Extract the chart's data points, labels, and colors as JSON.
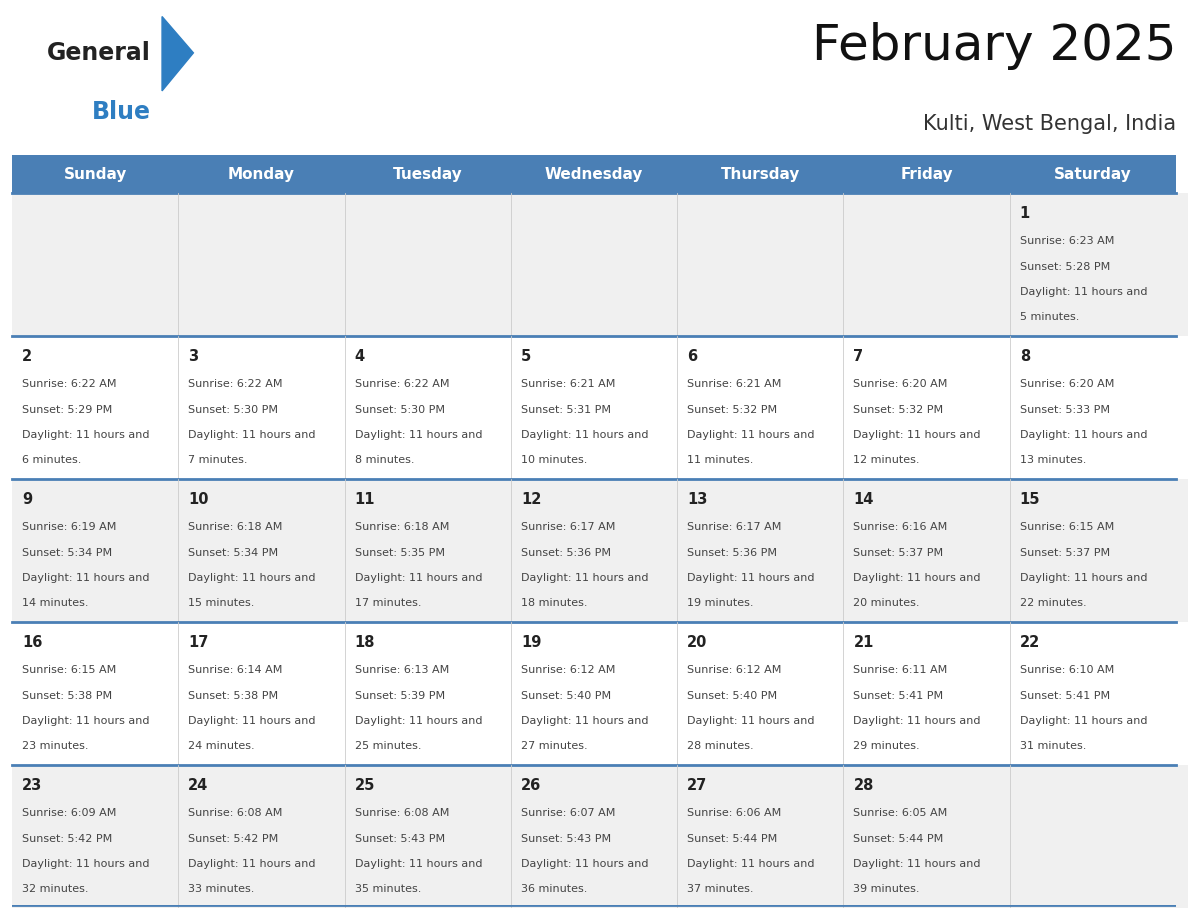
{
  "title": "February 2025",
  "subtitle": "Kulti, West Bengal, India",
  "header_bg": "#4a7fb5",
  "header_text_color": "#ffffff",
  "day_names": [
    "Sunday",
    "Monday",
    "Tuesday",
    "Wednesday",
    "Thursday",
    "Friday",
    "Saturday"
  ],
  "row_bg_odd": "#f0f0f0",
  "row_bg_even": "#ffffff",
  "cell_border_color": "#4a7fb5",
  "cell_sep_color": "#cccccc",
  "text_color": "#444444",
  "date_color": "#222222",
  "logo_general_color": "#222222",
  "logo_blue_color": "#2e7ec2",
  "calendar": [
    [
      null,
      null,
      null,
      null,
      null,
      null,
      {
        "day": 1,
        "sunrise": "6:23 AM",
        "sunset": "5:28 PM",
        "daylight": "11 hours and 5 minutes"
      }
    ],
    [
      {
        "day": 2,
        "sunrise": "6:22 AM",
        "sunset": "5:29 PM",
        "daylight": "11 hours and 6 minutes"
      },
      {
        "day": 3,
        "sunrise": "6:22 AM",
        "sunset": "5:30 PM",
        "daylight": "11 hours and 7 minutes"
      },
      {
        "day": 4,
        "sunrise": "6:22 AM",
        "sunset": "5:30 PM",
        "daylight": "11 hours and 8 minutes"
      },
      {
        "day": 5,
        "sunrise": "6:21 AM",
        "sunset": "5:31 PM",
        "daylight": "11 hours and 10 minutes"
      },
      {
        "day": 6,
        "sunrise": "6:21 AM",
        "sunset": "5:32 PM",
        "daylight": "11 hours and 11 minutes"
      },
      {
        "day": 7,
        "sunrise": "6:20 AM",
        "sunset": "5:32 PM",
        "daylight": "11 hours and 12 minutes"
      },
      {
        "day": 8,
        "sunrise": "6:20 AM",
        "sunset": "5:33 PM",
        "daylight": "11 hours and 13 minutes"
      }
    ],
    [
      {
        "day": 9,
        "sunrise": "6:19 AM",
        "sunset": "5:34 PM",
        "daylight": "11 hours and 14 minutes"
      },
      {
        "day": 10,
        "sunrise": "6:18 AM",
        "sunset": "5:34 PM",
        "daylight": "11 hours and 15 minutes"
      },
      {
        "day": 11,
        "sunrise": "6:18 AM",
        "sunset": "5:35 PM",
        "daylight": "11 hours and 17 minutes"
      },
      {
        "day": 12,
        "sunrise": "6:17 AM",
        "sunset": "5:36 PM",
        "daylight": "11 hours and 18 minutes"
      },
      {
        "day": 13,
        "sunrise": "6:17 AM",
        "sunset": "5:36 PM",
        "daylight": "11 hours and 19 minutes"
      },
      {
        "day": 14,
        "sunrise": "6:16 AM",
        "sunset": "5:37 PM",
        "daylight": "11 hours and 20 minutes"
      },
      {
        "day": 15,
        "sunrise": "6:15 AM",
        "sunset": "5:37 PM",
        "daylight": "11 hours and 22 minutes"
      }
    ],
    [
      {
        "day": 16,
        "sunrise": "6:15 AM",
        "sunset": "5:38 PM",
        "daylight": "11 hours and 23 minutes"
      },
      {
        "day": 17,
        "sunrise": "6:14 AM",
        "sunset": "5:38 PM",
        "daylight": "11 hours and 24 minutes"
      },
      {
        "day": 18,
        "sunrise": "6:13 AM",
        "sunset": "5:39 PM",
        "daylight": "11 hours and 25 minutes"
      },
      {
        "day": 19,
        "sunrise": "6:12 AM",
        "sunset": "5:40 PM",
        "daylight": "11 hours and 27 minutes"
      },
      {
        "day": 20,
        "sunrise": "6:12 AM",
        "sunset": "5:40 PM",
        "daylight": "11 hours and 28 minutes"
      },
      {
        "day": 21,
        "sunrise": "6:11 AM",
        "sunset": "5:41 PM",
        "daylight": "11 hours and 29 minutes"
      },
      {
        "day": 22,
        "sunrise": "6:10 AM",
        "sunset": "5:41 PM",
        "daylight": "11 hours and 31 minutes"
      }
    ],
    [
      {
        "day": 23,
        "sunrise": "6:09 AM",
        "sunset": "5:42 PM",
        "daylight": "11 hours and 32 minutes"
      },
      {
        "day": 24,
        "sunrise": "6:08 AM",
        "sunset": "5:42 PM",
        "daylight": "11 hours and 33 minutes"
      },
      {
        "day": 25,
        "sunrise": "6:08 AM",
        "sunset": "5:43 PM",
        "daylight": "11 hours and 35 minutes"
      },
      {
        "day": 26,
        "sunrise": "6:07 AM",
        "sunset": "5:43 PM",
        "daylight": "11 hours and 36 minutes"
      },
      {
        "day": 27,
        "sunrise": "6:06 AM",
        "sunset": "5:44 PM",
        "daylight": "11 hours and 37 minutes"
      },
      {
        "day": 28,
        "sunrise": "6:05 AM",
        "sunset": "5:44 PM",
        "daylight": "11 hours and 39 minutes"
      },
      null
    ]
  ]
}
